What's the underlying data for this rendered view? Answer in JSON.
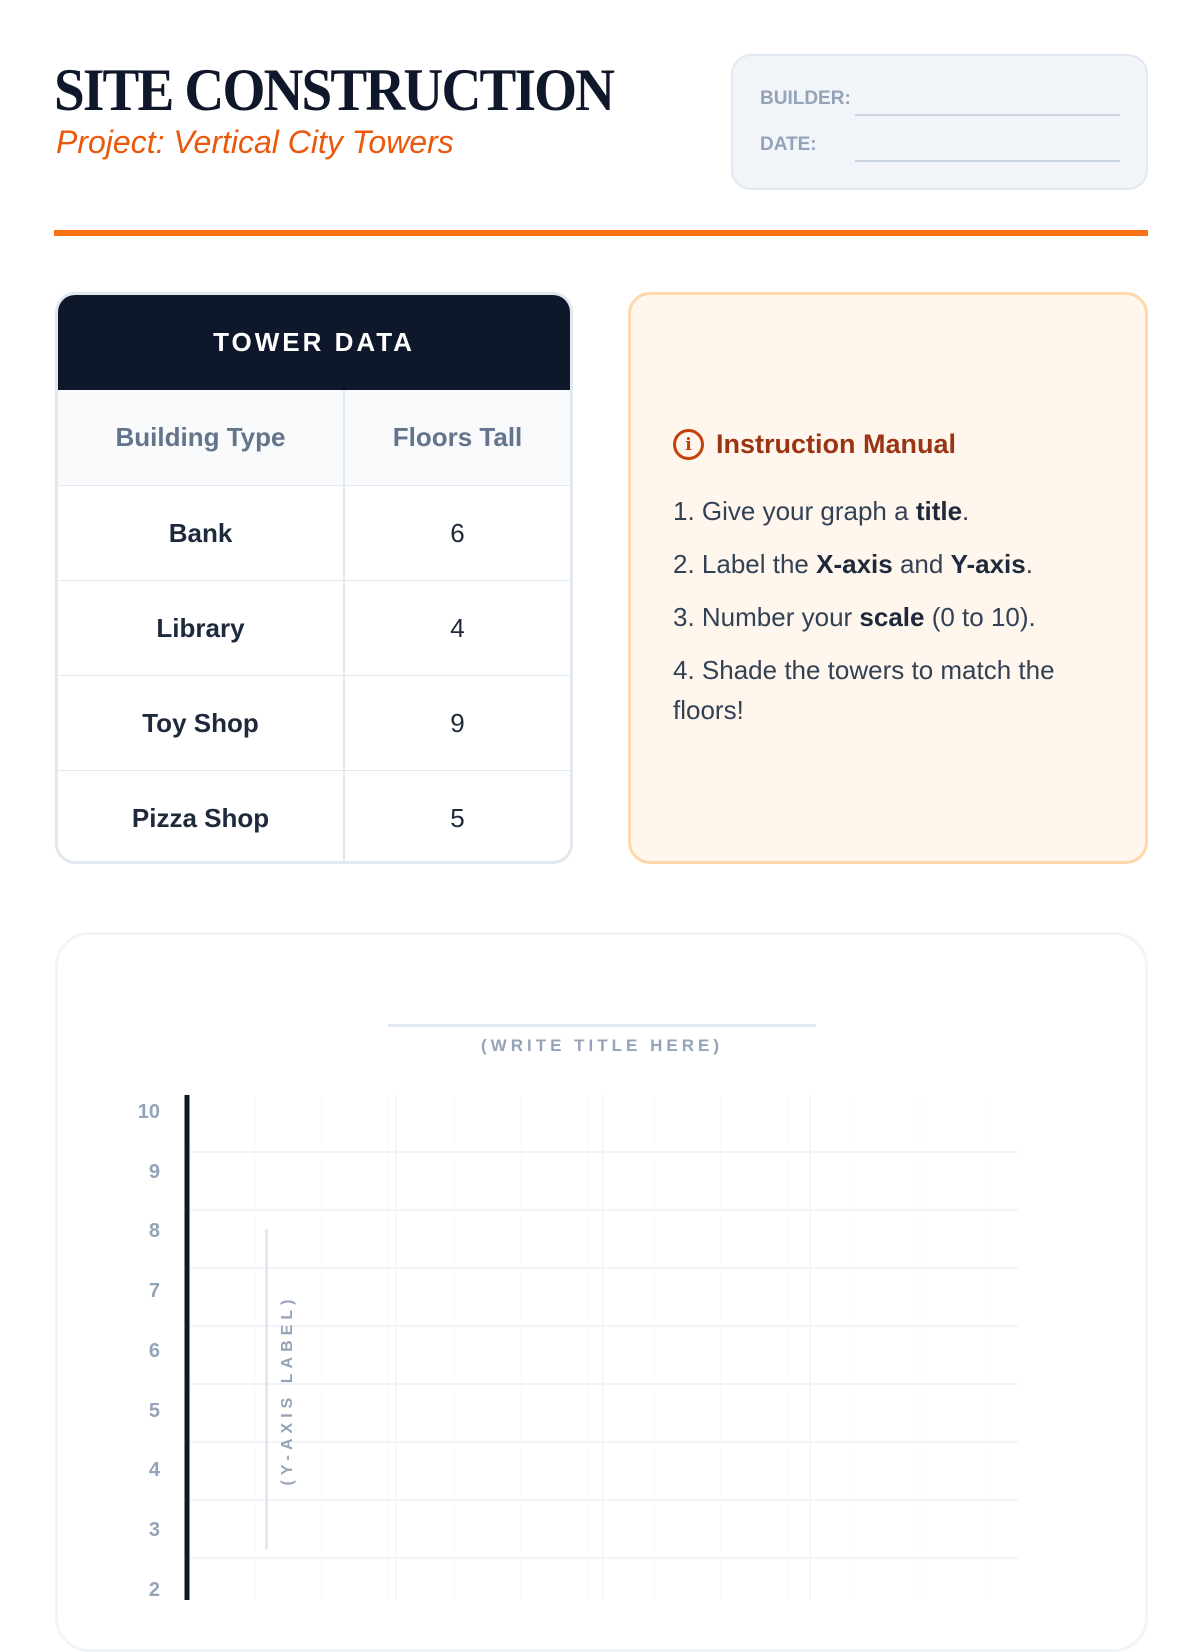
{
  "header": {
    "title": "SITE CONSTRUCTION",
    "subtitle": "Project: Vertical City Towers",
    "builder_label": "BUILDER:",
    "date_label": "DATE:"
  },
  "table": {
    "title": "TOWER DATA",
    "columns": [
      "Building Type",
      "Floors Tall"
    ],
    "rows": [
      {
        "type": "Bank",
        "floors": "6"
      },
      {
        "type": "Library",
        "floors": "4"
      },
      {
        "type": "Toy Shop",
        "floors": "9"
      },
      {
        "type": "Pizza Shop",
        "floors": "5"
      }
    ]
  },
  "instructions": {
    "icon": "info-icon",
    "title": "Instruction Manual",
    "steps": [
      [
        {
          "t": "1. Give your graph a "
        },
        {
          "t": "title",
          "b": true
        },
        {
          "t": "."
        }
      ],
      [
        {
          "t": "2. Label the "
        },
        {
          "t": "X-axis",
          "b": true
        },
        {
          "t": " and "
        },
        {
          "t": "Y-axis",
          "b": true
        },
        {
          "t": "."
        }
      ],
      [
        {
          "t": "3. Number your "
        },
        {
          "t": "scale",
          "b": true
        },
        {
          "t": " (0 to 10)."
        }
      ],
      [
        {
          "t": "4. Shade the towers to match the floors!"
        }
      ]
    ]
  },
  "graph": {
    "title_placeholder": "(WRITE TITLE HERE)",
    "y_label_placeholder": "(Y-AXIS LABEL)",
    "y_ticks": [
      "10",
      "9",
      "8",
      "7",
      "6",
      "5",
      "4",
      "3",
      "2"
    ]
  },
  "colors": {
    "accent": "#f97316",
    "dark": "#0f172a",
    "note_bg": "#fff7ed"
  }
}
